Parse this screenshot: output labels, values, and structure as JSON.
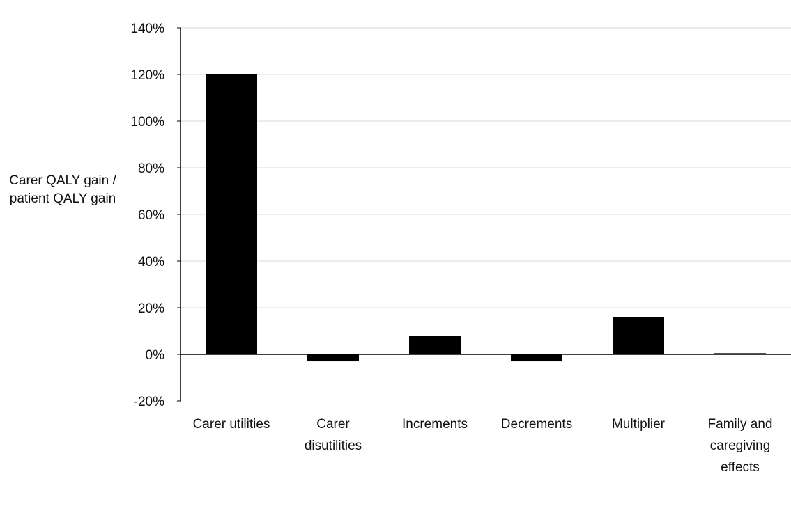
{
  "chart_data": {
    "type": "bar",
    "title": "",
    "xlabel": "",
    "ylabel": "Carer QALY gain / patient QALY gain",
    "categories": [
      "Carer utilities",
      "Carer disutilities",
      "Increments",
      "Decrements",
      "Multiplier",
      "Family and caregiving effects"
    ],
    "values": [
      120,
      -3,
      8,
      -3,
      16,
      0.5
    ],
    "ylim": [
      -20,
      140
    ],
    "yticks": [
      140,
      120,
      100,
      80,
      60,
      40,
      20,
      0,
      -20
    ],
    "ytick_labels": [
      "140%",
      "120%",
      "100%",
      "80%",
      "60%",
      "40%",
      "20%",
      "0%",
      "-20%"
    ],
    "grid": true,
    "legend": "none",
    "bar_color": "#000000",
    "grid_color": "#d9d9d9"
  }
}
